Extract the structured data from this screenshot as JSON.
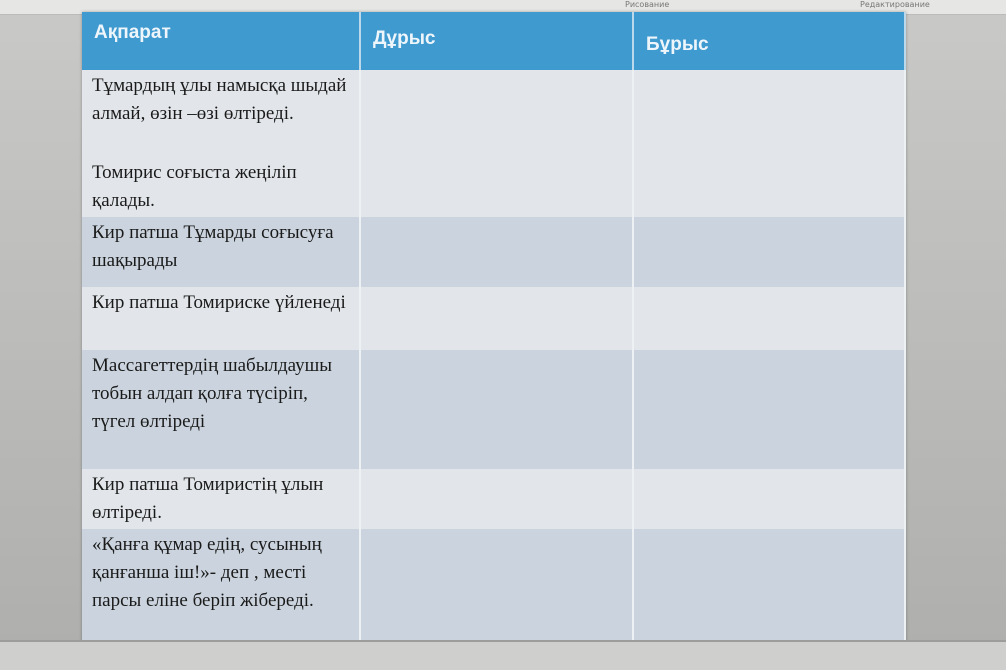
{
  "ribbon": {
    "group1": "Рисование",
    "group2": "Редактирование"
  },
  "table": {
    "headers": [
      "Ақпарат",
      "Дұрыс",
      "Бұрыс"
    ],
    "rows": [
      "Тұмардың ұлы  намысқа шыдай алмай, өзін –өзі өлтіреді.",
      "Томирис соғыста жеңіліп қалады.",
      " Кир патша  Тұмарды соғысуға  шақырады",
      "Кир патша Томириске үйленеді",
      " Массагеттердің шабылдаушы  тобын алдап қолға түсіріп, түгел өлтіреді",
      "Кир патша Томиристің ұлын өлтіреді.",
      "«Қанға құмар едің, сусының  қанғанша іш!»- деп , месті  парсы еліне беріп жібереді."
    ]
  }
}
